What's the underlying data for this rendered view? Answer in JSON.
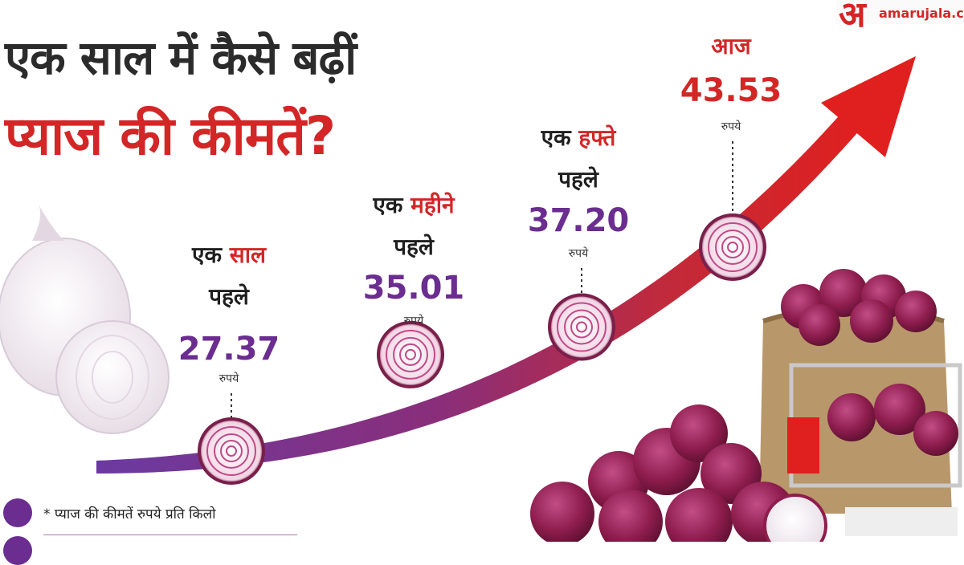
{
  "title": {
    "line1": "एक साल में कैसे बढ़ीं",
    "line2": "प्याज की कीमतें?"
  },
  "brand": {
    "logo_letter": "अ",
    "text": "amarujala.co"
  },
  "footnote": "* प्याज की कीमतें रुपये प्रति किलो",
  "colors": {
    "accent_red": "#d32626",
    "purple": "#6b2d90",
    "dark_text": "#1f1f1f"
  },
  "chart_data": {
    "type": "line",
    "title": "एक साल में कैसे बढ़ीं प्याज की कीमतें?",
    "unit": "रुपये",
    "points": [
      {
        "label_plain": "एक",
        "label_highlight": "साल",
        "label_line2": "पहले",
        "value": 27.37,
        "value_text": "27.37",
        "unit": "रुपये"
      },
      {
        "label_plain": "एक",
        "label_highlight": "महीने",
        "label_line2": "पहले",
        "value": 35.01,
        "value_text": "35.01",
        "unit": "रुपये"
      },
      {
        "label_plain": "एक",
        "label_highlight": "हफ्ते",
        "label_line2": "पहले",
        "value": 37.2,
        "value_text": "37.20",
        "unit": "रुपये"
      },
      {
        "label_plain": "आज",
        "label_highlight": "",
        "label_line2": "",
        "value": 43.53,
        "value_text": "43.53",
        "unit": "रुपये"
      }
    ]
  }
}
